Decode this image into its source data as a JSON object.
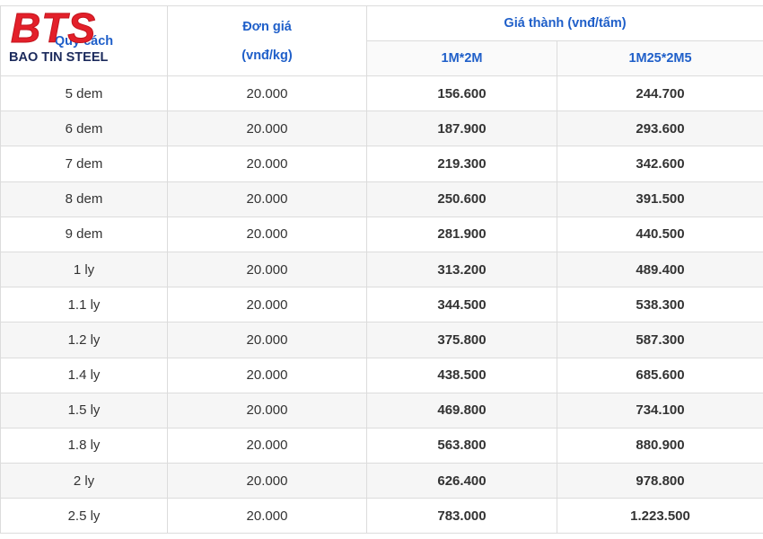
{
  "logo": {
    "mark": "BTS",
    "name": "BAO TIN STEEL"
  },
  "table": {
    "header": {
      "spec": "Quy cách",
      "unit_price": [
        "Đơn giá",
        "(vnđ/kg)"
      ],
      "cost": "Giá thành (vnđ/tấm)",
      "sizes": [
        "1M*2M",
        "1M25*2M5"
      ]
    },
    "rows": [
      [
        "5 dem",
        "20.000",
        "156.600",
        "244.700"
      ],
      [
        "6 dem",
        "20.000",
        "187.900",
        "293.600"
      ],
      [
        "7 dem",
        "20.000",
        "219.300",
        "342.600"
      ],
      [
        "8 dem",
        "20.000",
        "250.600",
        "391.500"
      ],
      [
        "9 dem",
        "20.000",
        "281.900",
        "440.500"
      ],
      [
        "1 ly",
        "20.000",
        "313.200",
        "489.400"
      ],
      [
        "1.1 ly",
        "20.000",
        "344.500",
        "538.300"
      ],
      [
        "1.2 ly",
        "20.000",
        "375.800",
        "587.300"
      ],
      [
        "1.4 ly",
        "20.000",
        "438.500",
        "685.600"
      ],
      [
        "1.5 ly",
        "20.000",
        "469.800",
        "734.100"
      ],
      [
        "1.8 ly",
        "20.000",
        "563.800",
        "880.900"
      ],
      [
        "2 ly",
        "20.000",
        "626.400",
        "978.800"
      ],
      [
        "2.5 ly",
        "20.000",
        "783.000",
        "1.223.500"
      ]
    ]
  }
}
